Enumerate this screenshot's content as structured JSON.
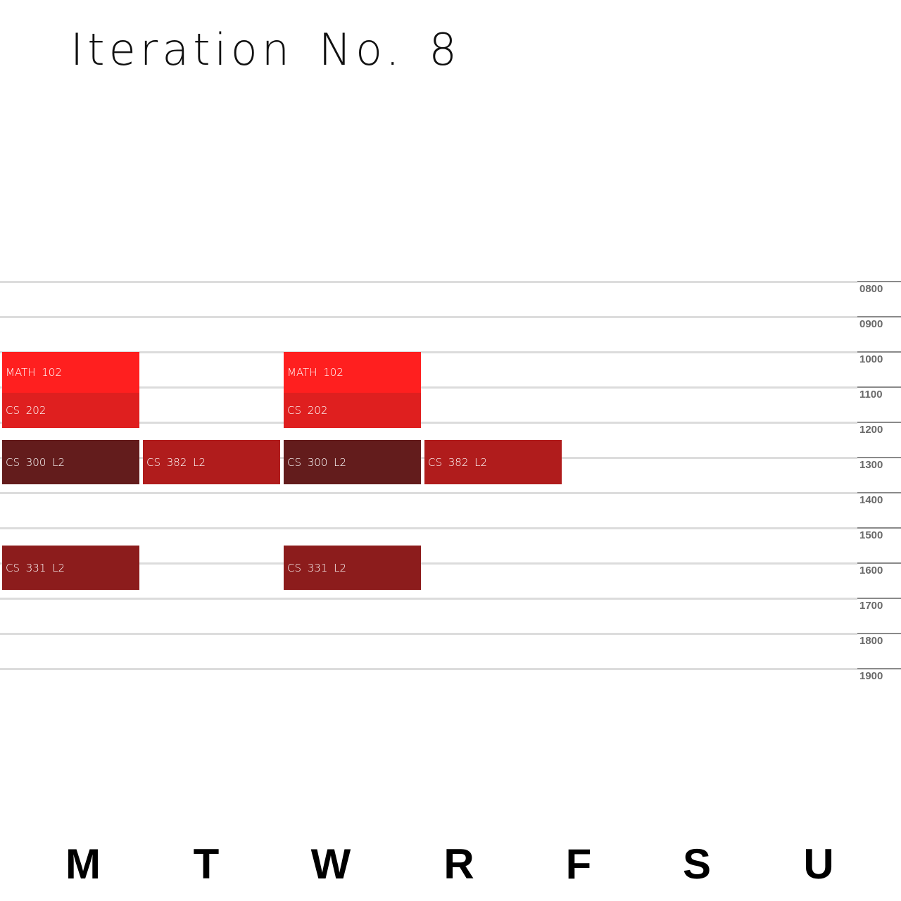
{
  "title": "Iteration No. 8",
  "time_labels": [
    "0800",
    "0900",
    "1000",
    "1100",
    "1200",
    "1300",
    "1400",
    "1500",
    "1600",
    "1700",
    "1800",
    "1900"
  ],
  "days": [
    "M",
    "T",
    "W",
    "R",
    "F",
    "S",
    "U"
  ],
  "courses": [
    {
      "label": "MATH 102",
      "day": "M",
      "start": "1000",
      "end": "1110",
      "color": "#ff1f1f"
    },
    {
      "label": "CS 202",
      "day": "M",
      "start": "1110",
      "end": "1210",
      "color": "#df1f1f"
    },
    {
      "label": "CS 300 L2",
      "day": "M",
      "start": "1230",
      "end": "1345",
      "color": "#631c1c"
    },
    {
      "label": "CS 331 L2",
      "day": "M",
      "start": "1530",
      "end": "1645",
      "color": "#8c1c1c"
    },
    {
      "label": "CS 382 L2",
      "day": "T",
      "start": "1230",
      "end": "1345",
      "color": "#b01c1c"
    },
    {
      "label": "MATH 102",
      "day": "W",
      "start": "1000",
      "end": "1110",
      "color": "#ff1f1f"
    },
    {
      "label": "CS 202",
      "day": "W",
      "start": "1110",
      "end": "1210",
      "color": "#df1f1f"
    },
    {
      "label": "CS 300 L2",
      "day": "W",
      "start": "1230",
      "end": "1345",
      "color": "#631c1c"
    },
    {
      "label": "CS 331 L2",
      "day": "W",
      "start": "1530",
      "end": "1645",
      "color": "#8c1c1c"
    },
    {
      "label": "CS 382 L2",
      "day": "R",
      "start": "1230",
      "end": "1345",
      "color": "#b01c1c"
    }
  ]
}
